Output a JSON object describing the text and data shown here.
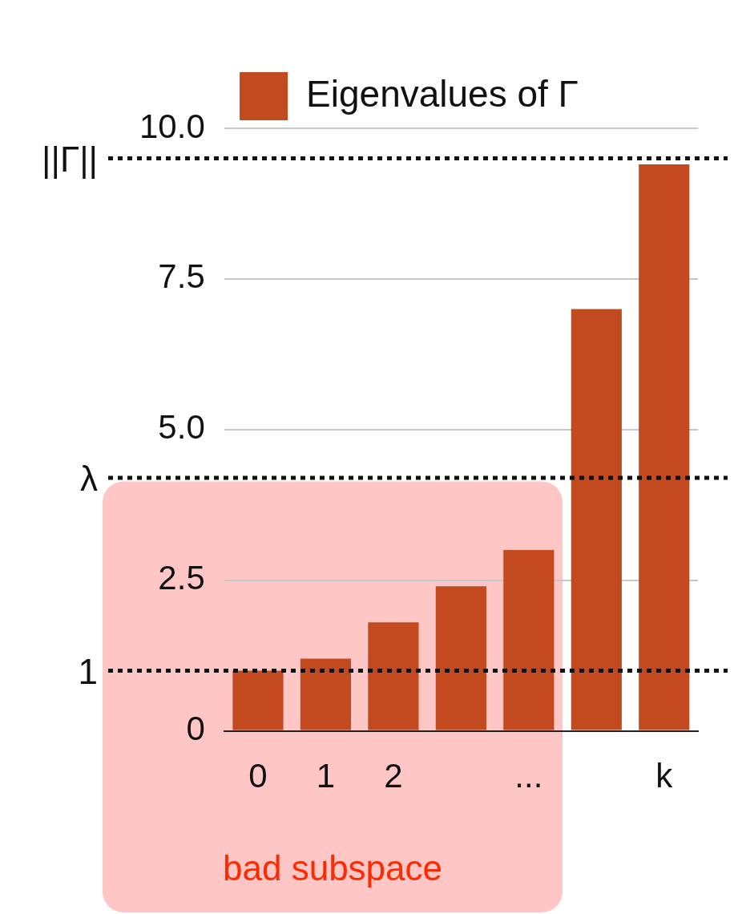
{
  "chart_data": {
    "type": "bar",
    "categories": [
      "0",
      "1",
      "2",
      null,
      "...",
      null,
      "k"
    ],
    "series": [
      {
        "name": "Eigenvalues of Γ",
        "color": "#c24a1e",
        "values": [
          1.0,
          1.2,
          1.8,
          2.4,
          3.0,
          7.0,
          9.4
        ]
      }
    ],
    "ylim": [
      0,
      10
    ],
    "yticks": [
      0,
      2.5,
      {
        "value": 5,
        "label": "5.0"
      },
      7.5,
      {
        "value": 10,
        "label": "10.0"
      }
    ],
    "grid": "y",
    "legend": "top",
    "ref_lines": [
      {
        "axis": "y",
        "value": 1,
        "label": "1",
        "line_style": "dotted"
      },
      {
        "axis": "y",
        "value": 4.2,
        "label": "λ",
        "line_style": "dotted"
      },
      {
        "axis": "y",
        "value": 9.5,
        "label": "||Γ||",
        "line_style": "dotted"
      }
    ],
    "bands": [
      {
        "axis": "x",
        "from": "0",
        "to": "...",
        "label": "bad subspace",
        "color": "#ffc6c6"
      }
    ]
  }
}
